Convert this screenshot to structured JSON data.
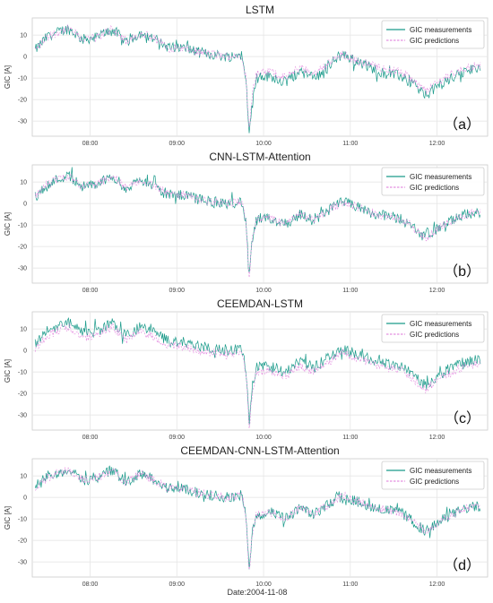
{
  "figure": {
    "xlabel": "Date:2004-11-08"
  },
  "chart_data": [
    {
      "type": "line",
      "title": "LSTM",
      "panel_tag": "（a）",
      "ylabel": "GIC [A]",
      "xlim": [
        "07:20",
        "12:35"
      ],
      "ylim": [
        -37,
        18
      ],
      "x_ticks": [
        "08:00",
        "09:00",
        "10:00",
        "11:00",
        "12:00"
      ],
      "y_ticks": [
        -30,
        -20,
        -10,
        0,
        10
      ],
      "grid": true,
      "legend_position": "top-right",
      "prediction_offset": 0,
      "series": [
        {
          "name": "GIC measurements",
          "color": "#1a9a8a",
          "style": "solid",
          "negative_bias": -2
        },
        {
          "name": "GIC predictions",
          "color": "#e48fe0",
          "style": "dashed"
        }
      ]
    },
    {
      "type": "line",
      "title": "CNN-LSTM-Attention",
      "panel_tag": "（b）",
      "ylabel": "GIC [A]",
      "xlim": [
        "07:20",
        "12:35"
      ],
      "ylim": [
        -37,
        18
      ],
      "x_ticks": [
        "08:00",
        "09:00",
        "10:00",
        "11:00",
        "12:00"
      ],
      "y_ticks": [
        -30,
        -20,
        -10,
        0,
        10
      ],
      "grid": true,
      "legend_position": "top-right",
      "prediction_offset": 0,
      "series": [
        {
          "name": "GIC measurements",
          "color": "#1a9a8a",
          "style": "solid"
        },
        {
          "name": "GIC predictions",
          "color": "#e48fe0",
          "style": "dashed"
        }
      ]
    },
    {
      "type": "line",
      "title": "CEEMDAN-LSTM",
      "panel_tag": "（c）",
      "ylabel": "GIC [A]",
      "xlim": [
        "07:20",
        "12:35"
      ],
      "ylim": [
        -37,
        18
      ],
      "x_ticks": [
        "08:00",
        "09:00",
        "10:00",
        "11:00",
        "12:00"
      ],
      "y_ticks": [
        -30,
        -20,
        -10,
        0,
        10
      ],
      "grid": true,
      "legend_position": "top-right",
      "prediction_offset": -2,
      "series": [
        {
          "name": "GIC measurements",
          "color": "#1a9a8a",
          "style": "solid"
        },
        {
          "name": "GIC predictions",
          "color": "#e48fe0",
          "style": "dashed"
        }
      ]
    },
    {
      "type": "line",
      "title": "CEEMDAN-CNN-LSTM-Attention",
      "panel_tag": "（d）",
      "ylabel": "GIC [A]",
      "xlim": [
        "07:20",
        "12:35"
      ],
      "ylim": [
        -37,
        18
      ],
      "x_ticks": [
        "08:00",
        "09:00",
        "10:00",
        "11:00",
        "12:00"
      ],
      "y_ticks": [
        -30,
        -20,
        -10,
        0,
        10
      ],
      "grid": true,
      "legend_position": "top-right",
      "prediction_offset": 0,
      "series": [
        {
          "name": "GIC measurements",
          "color": "#1a9a8a",
          "style": "solid"
        },
        {
          "name": "GIC predictions",
          "color": "#e48fe0",
          "style": "dashed"
        }
      ]
    }
  ],
  "shared_trend": {
    "x": [
      "07:22",
      "07:30",
      "07:40",
      "07:45",
      "07:55",
      "08:05",
      "08:15",
      "08:25",
      "08:35",
      "08:45",
      "08:55",
      "09:05",
      "09:15",
      "09:25",
      "09:35",
      "09:45",
      "09:48",
      "09:50",
      "09:52",
      "09:55",
      "10:05",
      "10:15",
      "10:25",
      "10:35",
      "10:45",
      "10:55",
      "11:05",
      "11:15",
      "11:25",
      "11:35",
      "11:45",
      "11:52",
      "12:00",
      "12:10",
      "12:20",
      "12:30"
    ],
    "y": [
      3,
      9,
      12,
      13,
      8,
      9,
      13,
      7,
      11,
      8,
      4,
      4,
      2,
      1,
      0,
      1,
      -10,
      -35,
      -18,
      -8,
      -7,
      -10,
      -5,
      -8,
      -3,
      1,
      -2,
      -4,
      -6,
      -7,
      -12,
      -16,
      -12,
      -8,
      -5,
      -4
    ]
  }
}
